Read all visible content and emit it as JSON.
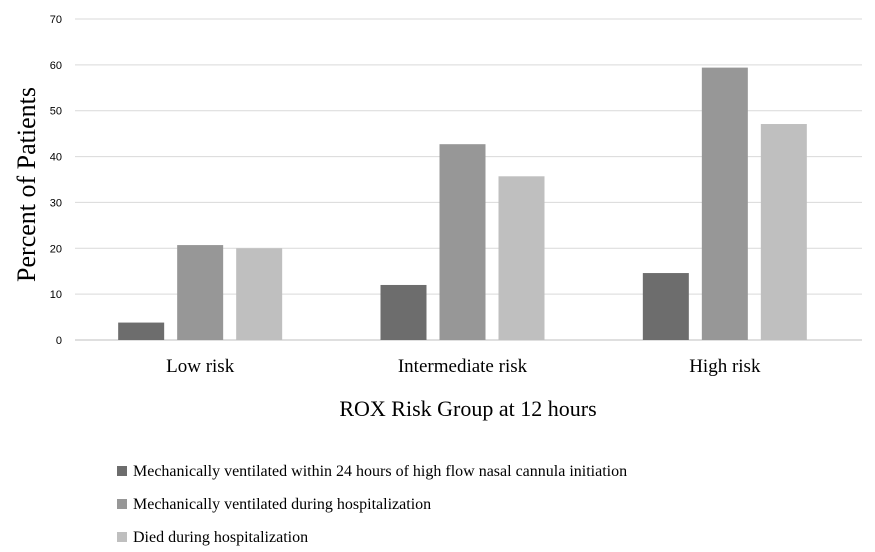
{
  "chart_data": {
    "type": "bar",
    "categories": [
      "Low risk",
      "Intermediate risk",
      "High risk"
    ],
    "series": [
      {
        "name": "Mechanically ventilated within 24 hours of high flow nasal cannula initiation",
        "color": "#6d6d6d",
        "values": [
          3.8,
          12.0,
          14.6
        ]
      },
      {
        "name": "Mechanically ventilated during hospitalization",
        "color": "#979797",
        "values": [
          20.7,
          42.7,
          59.4
        ]
      },
      {
        "name": "Died during hospitalization",
        "color": "#bfbfbf",
        "values": [
          20.0,
          35.7,
          47.1
        ]
      }
    ],
    "xlabel": "ROX Risk Group at 12 hours",
    "ylabel": "Percent of Patients",
    "ylim": [
      0,
      70
    ],
    "yticks": [
      0,
      10,
      20,
      30,
      40,
      50,
      60,
      70
    ],
    "grid": true,
    "legend": "bottom-left"
  }
}
